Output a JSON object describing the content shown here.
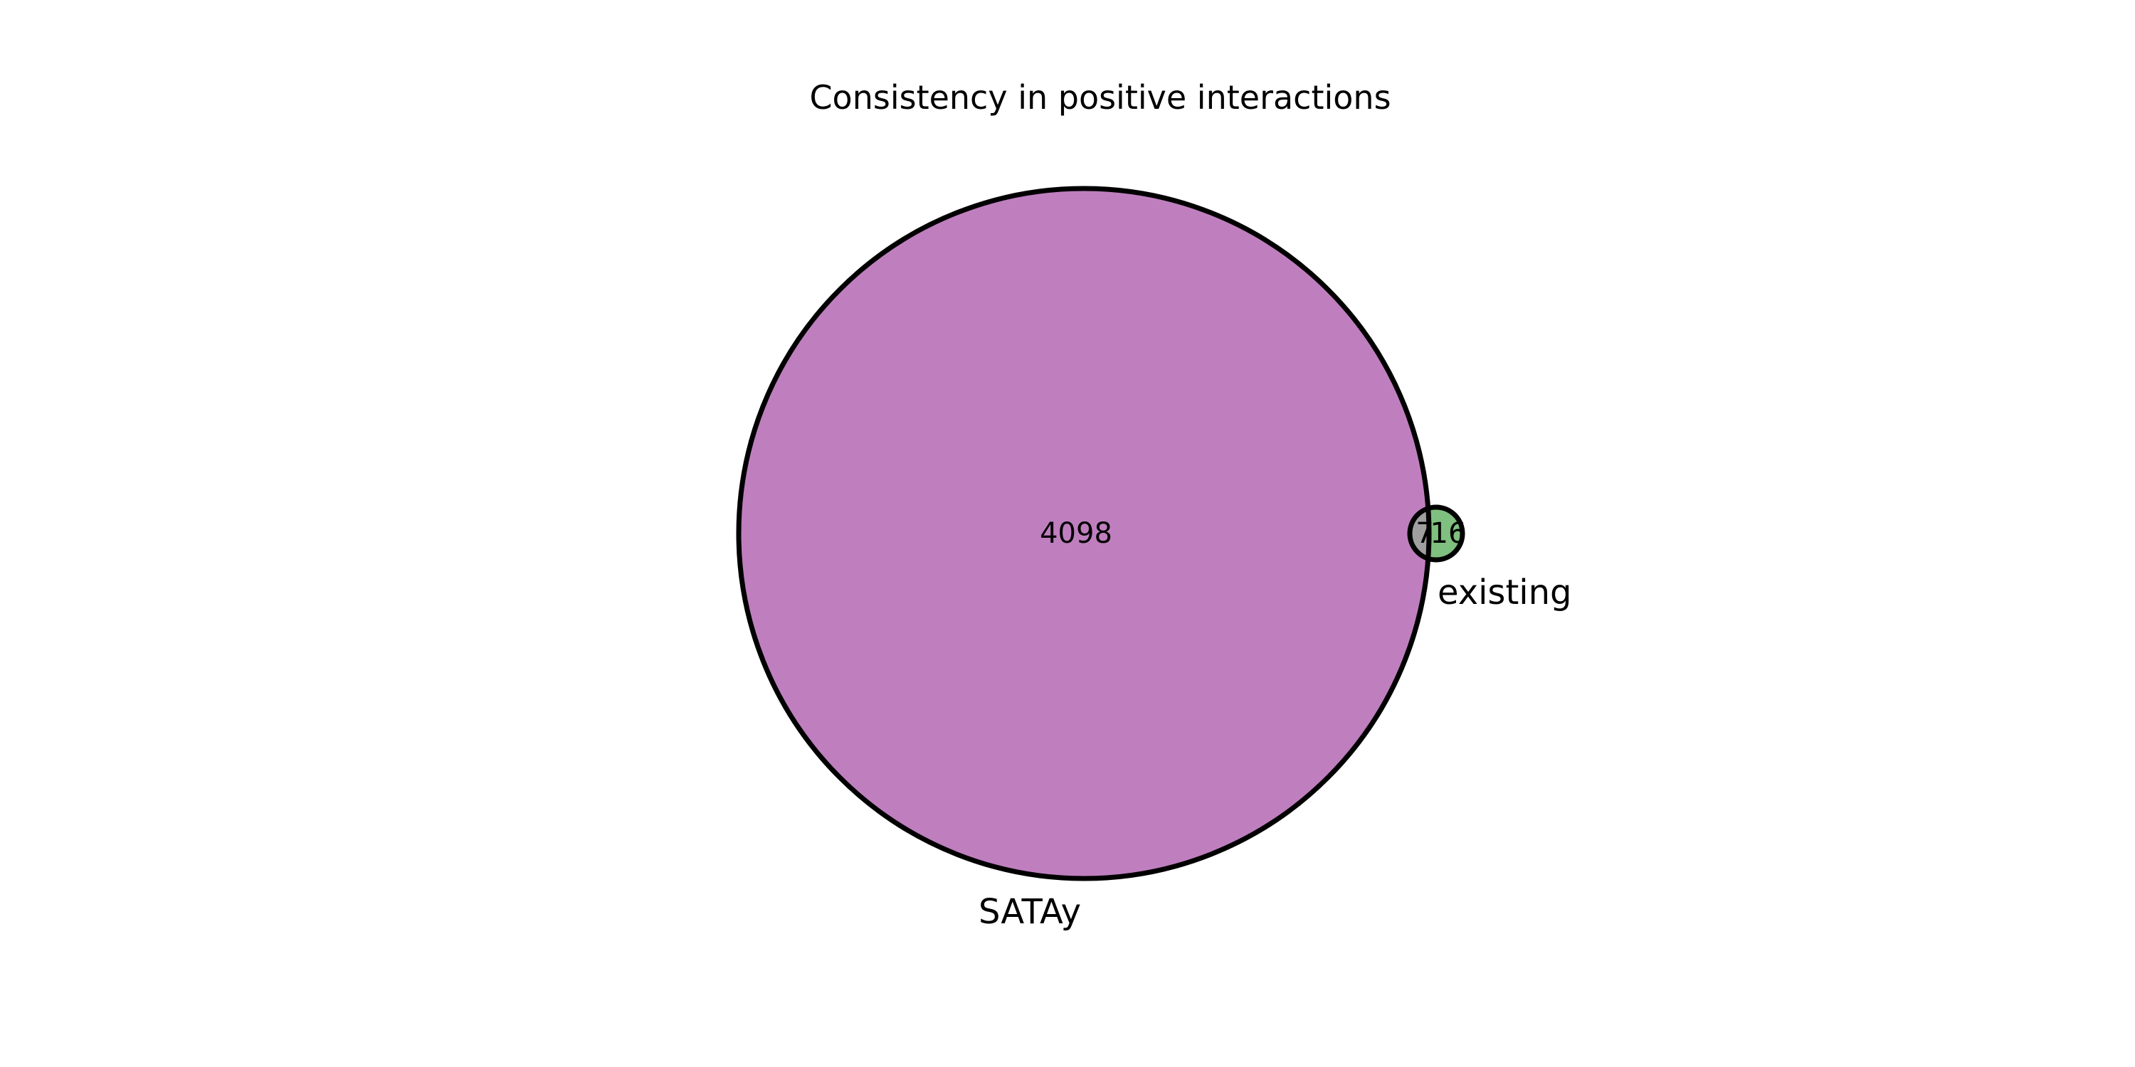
{
  "title": "Consistency in positive interactions",
  "sets": [
    {
      "name": "SATAy",
      "color": "#bf7fbf"
    },
    {
      "name": "existing",
      "color": "#7fbf7f"
    }
  ],
  "regions": {
    "satay_only": "4098",
    "overlap": "7",
    "existing_only": "16"
  },
  "overlap_color": "#9f9f9f",
  "outline_color": "#000000"
}
